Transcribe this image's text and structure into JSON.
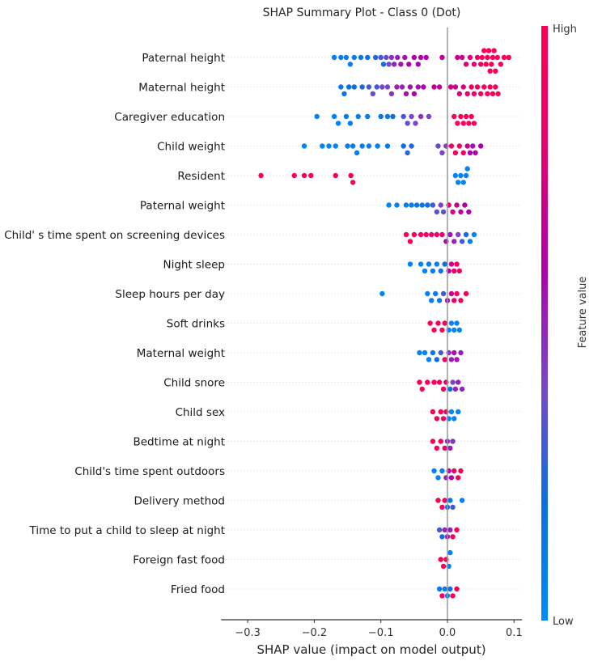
{
  "chart_data": {
    "type": "scatter",
    "subtype": "shap-beeswarm",
    "title": "SHAP Summary Plot - Class 0 (Dot)",
    "xlabel": "SHAP value (impact on model output)",
    "ylabel": "",
    "xlim": [
      -0.34,
      0.112
    ],
    "xticks": [
      -0.3,
      -0.2,
      -0.1,
      0.0,
      0.1
    ],
    "xtick_labels": [
      "−0.3",
      "−0.2",
      "−0.1",
      "0.0",
      "0.1"
    ],
    "grid": false,
    "colorbar": {
      "label": "Feature value",
      "high_label": "High",
      "low_label": "Low",
      "colors": [
        "#008bfb",
        "#0d6fe0",
        "#7a45c8",
        "#b000a8",
        "#e8006f",
        "#ff0052"
      ]
    },
    "features": [
      {
        "name": "Paternal height",
        "points": [
          [
            -0.17,
            0.1
          ],
          [
            -0.16,
            0.1
          ],
          [
            -0.152,
            0.1
          ],
          [
            -0.146,
            0.1
          ],
          [
            -0.14,
            0.1
          ],
          [
            -0.13,
            0.15
          ],
          [
            -0.12,
            0.2
          ],
          [
            -0.108,
            0.25
          ],
          [
            -0.1,
            0.3
          ],
          [
            -0.096,
            0.2
          ],
          [
            -0.092,
            0.35
          ],
          [
            -0.088,
            0.4
          ],
          [
            -0.084,
            0.45
          ],
          [
            -0.08,
            0.5
          ],
          [
            -0.075,
            0.5
          ],
          [
            -0.07,
            0.55
          ],
          [
            -0.064,
            0.55
          ],
          [
            -0.058,
            0.6
          ],
          [
            -0.05,
            0.6
          ],
          [
            -0.044,
            0.6
          ],
          [
            -0.04,
            0.6
          ],
          [
            -0.032,
            0.6
          ],
          [
            -0.008,
            0.65
          ],
          [
            0.015,
            0.7
          ],
          [
            0.022,
            0.7
          ],
          [
            0.028,
            0.75
          ],
          [
            0.034,
            0.75
          ],
          [
            0.04,
            0.8
          ],
          [
            0.045,
            0.85
          ],
          [
            0.05,
            0.9
          ],
          [
            0.052,
            0.9
          ],
          [
            0.055,
            0.95
          ],
          [
            0.058,
            0.95
          ],
          [
            0.06,
            0.95
          ],
          [
            0.062,
            0.95
          ],
          [
            0.064,
            0.9
          ],
          [
            0.066,
            0.95
          ],
          [
            0.068,
            0.95
          ],
          [
            0.07,
            0.9
          ],
          [
            0.072,
            0.95
          ],
          [
            0.075,
            0.95
          ],
          [
            0.08,
            0.95
          ],
          [
            0.085,
            0.95
          ],
          [
            0.092,
            0.95
          ]
        ]
      },
      {
        "name": "Maternal height",
        "points": [
          [
            -0.16,
            0.15
          ],
          [
            -0.155,
            0.15
          ],
          [
            -0.148,
            0.2
          ],
          [
            -0.14,
            0.2
          ],
          [
            -0.128,
            0.25
          ],
          [
            -0.118,
            0.3
          ],
          [
            -0.112,
            0.35
          ],
          [
            -0.106,
            0.3
          ],
          [
            -0.098,
            0.4
          ],
          [
            -0.09,
            0.4
          ],
          [
            -0.084,
            0.45
          ],
          [
            -0.076,
            0.5
          ],
          [
            -0.068,
            0.5
          ],
          [
            -0.062,
            0.55
          ],
          [
            -0.056,
            0.55
          ],
          [
            -0.05,
            0.6
          ],
          [
            -0.044,
            0.55
          ],
          [
            -0.036,
            0.6
          ],
          [
            -0.02,
            0.65
          ],
          [
            -0.012,
            0.65
          ],
          [
            0.005,
            0.7
          ],
          [
            0.012,
            0.7
          ],
          [
            0.018,
            0.75
          ],
          [
            0.024,
            0.75
          ],
          [
            0.03,
            0.8
          ],
          [
            0.036,
            0.85
          ],
          [
            0.04,
            0.85
          ],
          [
            0.045,
            0.9
          ],
          [
            0.05,
            0.9
          ],
          [
            0.055,
            0.9
          ],
          [
            0.06,
            0.95
          ],
          [
            0.064,
            0.95
          ],
          [
            0.068,
            0.95
          ],
          [
            0.072,
            0.95
          ],
          [
            0.076,
            0.95
          ]
        ]
      },
      {
        "name": "Caregiver education",
        "points": [
          [
            -0.196,
            0.05
          ],
          [
            -0.17,
            0.05
          ],
          [
            -0.164,
            0.05
          ],
          [
            -0.152,
            0.1
          ],
          [
            -0.146,
            0.1
          ],
          [
            -0.134,
            0.1
          ],
          [
            -0.12,
            0.1
          ],
          [
            -0.1,
            0.15
          ],
          [
            -0.09,
            0.15
          ],
          [
            -0.082,
            0.2
          ],
          [
            -0.066,
            0.3
          ],
          [
            -0.06,
            0.35
          ],
          [
            -0.054,
            0.4
          ],
          [
            -0.048,
            0.4
          ],
          [
            -0.04,
            0.45
          ],
          [
            -0.028,
            0.4
          ],
          [
            0.01,
            0.95
          ],
          [
            0.015,
            0.95
          ],
          [
            0.02,
            0.95
          ],
          [
            0.024,
            0.95
          ],
          [
            0.028,
            0.9
          ],
          [
            0.032,
            0.95
          ],
          [
            0.036,
            0.95
          ],
          [
            0.04,
            0.95
          ]
        ]
      },
      {
        "name": "Child weight",
        "points": [
          [
            -0.215,
            0.05
          ],
          [
            -0.188,
            0.05
          ],
          [
            -0.178,
            0.05
          ],
          [
            -0.168,
            0.05
          ],
          [
            -0.15,
            0.1
          ],
          [
            -0.142,
            0.1
          ],
          [
            -0.136,
            0.1
          ],
          [
            -0.128,
            0.1
          ],
          [
            -0.118,
            0.1
          ],
          [
            -0.105,
            0.1
          ],
          [
            -0.09,
            0.15
          ],
          [
            -0.066,
            0.2
          ],
          [
            -0.06,
            0.25
          ],
          [
            -0.054,
            0.25
          ],
          [
            -0.014,
            0.35
          ],
          [
            -0.008,
            0.4
          ],
          [
            -0.002,
            0.45
          ],
          [
            0.006,
            0.9
          ],
          [
            0.012,
            0.9
          ],
          [
            0.018,
            0.9
          ],
          [
            0.024,
            0.85
          ],
          [
            0.03,
            0.7
          ],
          [
            0.034,
            0.6
          ],
          [
            0.038,
            0.55
          ],
          [
            0.042,
            0.6
          ],
          [
            0.05,
            0.6
          ]
        ]
      },
      {
        "name": "Resident",
        "points": [
          [
            -0.28,
            0.95
          ],
          [
            -0.23,
            0.95
          ],
          [
            -0.215,
            0.95
          ],
          [
            -0.205,
            0.95
          ],
          [
            -0.168,
            0.95
          ],
          [
            -0.145,
            0.95
          ],
          [
            -0.142,
            0.95
          ],
          [
            0.012,
            0.05
          ],
          [
            0.016,
            0.05
          ],
          [
            0.02,
            0.05
          ],
          [
            0.024,
            0.05
          ],
          [
            0.028,
            0.05
          ],
          [
            0.03,
            0.05
          ]
        ]
      },
      {
        "name": "Paternal weight",
        "points": [
          [
            -0.088,
            0.05
          ],
          [
            -0.076,
            0.05
          ],
          [
            -0.062,
            0.1
          ],
          [
            -0.054,
            0.1
          ],
          [
            -0.046,
            0.15
          ],
          [
            -0.038,
            0.15
          ],
          [
            -0.03,
            0.2
          ],
          [
            -0.022,
            0.3
          ],
          [
            -0.016,
            0.35
          ],
          [
            -0.01,
            0.4
          ],
          [
            -0.006,
            0.35
          ],
          [
            0.002,
            0.8
          ],
          [
            0.008,
            0.75
          ],
          [
            0.014,
            0.7
          ],
          [
            0.02,
            0.65
          ],
          [
            0.026,
            0.6
          ],
          [
            0.032,
            0.6
          ]
        ]
      },
      {
        "name": "Child' s time spent on screening devices",
        "points": [
          [
            -0.062,
            0.95
          ],
          [
            -0.056,
            0.95
          ],
          [
            -0.05,
            0.95
          ],
          [
            -0.04,
            0.95
          ],
          [
            -0.032,
            0.9
          ],
          [
            -0.024,
            0.9
          ],
          [
            -0.016,
            0.85
          ],
          [
            -0.008,
            0.8
          ],
          [
            -0.002,
            0.6
          ],
          [
            0.004,
            0.55
          ],
          [
            0.01,
            0.5
          ],
          [
            0.016,
            0.4
          ],
          [
            0.022,
            0.3
          ],
          [
            0.028,
            0.2
          ],
          [
            0.034,
            0.1
          ],
          [
            0.04,
            0.05
          ]
        ]
      },
      {
        "name": "Night sleep",
        "points": [
          [
            -0.056,
            0.05
          ],
          [
            -0.04,
            0.05
          ],
          [
            -0.034,
            0.05
          ],
          [
            -0.028,
            0.1
          ],
          [
            -0.022,
            0.1
          ],
          [
            -0.016,
            0.1
          ],
          [
            -0.01,
            0.15
          ],
          [
            -0.004,
            0.2
          ],
          [
            0.002,
            0.6
          ],
          [
            0.006,
            0.7
          ],
          [
            0.01,
            0.8
          ],
          [
            0.014,
            0.9
          ],
          [
            0.018,
            0.9
          ]
        ]
      },
      {
        "name": "Sleep hours per day",
        "points": [
          [
            -0.098,
            0.05
          ],
          [
            -0.03,
            0.05
          ],
          [
            -0.024,
            0.1
          ],
          [
            -0.018,
            0.1
          ],
          [
            -0.012,
            0.15
          ],
          [
            -0.006,
            0.3
          ],
          [
            0.0,
            0.55
          ],
          [
            0.006,
            0.7
          ],
          [
            0.01,
            0.85
          ],
          [
            0.014,
            0.9
          ],
          [
            0.02,
            0.95
          ],
          [
            0.028,
            0.95
          ]
        ]
      },
      {
        "name": "Soft drinks",
        "points": [
          [
            -0.026,
            0.95
          ],
          [
            -0.02,
            0.95
          ],
          [
            -0.014,
            0.95
          ],
          [
            -0.008,
            0.95
          ],
          [
            -0.004,
            0.9
          ],
          [
            0.002,
            0.1
          ],
          [
            0.006,
            0.05
          ],
          [
            0.01,
            0.05
          ],
          [
            0.014,
            0.05
          ],
          [
            0.018,
            0.05
          ]
        ]
      },
      {
        "name": "Maternal weight",
        "points": [
          [
            -0.042,
            0.05
          ],
          [
            -0.034,
            0.05
          ],
          [
            -0.028,
            0.05
          ],
          [
            -0.022,
            0.15
          ],
          [
            -0.016,
            0.2
          ],
          [
            -0.01,
            0.3
          ],
          [
            -0.004,
            0.9
          ],
          [
            0.002,
            0.45
          ],
          [
            0.006,
            0.5
          ],
          [
            0.01,
            0.55
          ],
          [
            0.014,
            0.55
          ],
          [
            0.02,
            0.5
          ]
        ]
      },
      {
        "name": "Child snore",
        "points": [
          [
            -0.042,
            0.95
          ],
          [
            -0.038,
            0.95
          ],
          [
            -0.03,
            0.95
          ],
          [
            -0.02,
            0.95
          ],
          [
            -0.012,
            0.9
          ],
          [
            -0.006,
            0.9
          ],
          [
            -0.002,
            0.85
          ],
          [
            0.004,
            0.2
          ],
          [
            0.008,
            0.4
          ],
          [
            0.012,
            0.5
          ],
          [
            0.016,
            0.5
          ],
          [
            0.022,
            0.5
          ]
        ]
      },
      {
        "name": "Child sex",
        "points": [
          [
            -0.022,
            0.95
          ],
          [
            -0.016,
            0.95
          ],
          [
            -0.01,
            0.95
          ],
          [
            -0.006,
            0.95
          ],
          [
            -0.002,
            0.9
          ],
          [
            0.002,
            0.05
          ],
          [
            0.006,
            0.05
          ],
          [
            0.01,
            0.05
          ],
          [
            0.016,
            0.05
          ]
        ]
      },
      {
        "name": "Bedtime at night",
        "points": [
          [
            -0.022,
            0.95
          ],
          [
            -0.016,
            0.95
          ],
          [
            -0.01,
            0.9
          ],
          [
            -0.004,
            0.85
          ],
          [
            0.0,
            0.5
          ],
          [
            0.004,
            0.5
          ],
          [
            0.008,
            0.45
          ]
        ]
      },
      {
        "name": "Child's time spent outdoors",
        "points": [
          [
            -0.02,
            0.05
          ],
          [
            -0.014,
            0.05
          ],
          [
            -0.008,
            0.1
          ],
          [
            -0.002,
            0.5
          ],
          [
            0.002,
            0.55
          ],
          [
            0.006,
            0.6
          ],
          [
            0.01,
            0.9
          ],
          [
            0.016,
            0.95
          ],
          [
            0.02,
            0.95
          ]
        ]
      },
      {
        "name": "Delivery method",
        "points": [
          [
            -0.014,
            0.95
          ],
          [
            -0.008,
            0.95
          ],
          [
            -0.004,
            0.9
          ],
          [
            0.0,
            0.2
          ],
          [
            0.004,
            0.15
          ],
          [
            0.008,
            0.3
          ],
          [
            0.022,
            0.05
          ]
        ]
      },
      {
        "name": "Time to put a child to sleep at night",
        "points": [
          [
            -0.012,
            0.3
          ],
          [
            -0.008,
            0.2
          ],
          [
            -0.004,
            0.5
          ],
          [
            0.0,
            0.55
          ],
          [
            0.004,
            0.5
          ],
          [
            0.008,
            0.9
          ],
          [
            0.014,
            0.95
          ]
        ]
      },
      {
        "name": "Foreign fast food",
        "points": [
          [
            -0.01,
            0.95
          ],
          [
            -0.006,
            0.95
          ],
          [
            -0.002,
            0.95
          ],
          [
            0.002,
            0.05
          ],
          [
            0.004,
            0.05
          ]
        ]
      },
      {
        "name": "Fried food",
        "points": [
          [
            -0.012,
            0.1
          ],
          [
            -0.008,
            0.9
          ],
          [
            -0.004,
            0.1
          ],
          [
            0.0,
            0.1
          ],
          [
            0.004,
            0.2
          ],
          [
            0.008,
            0.95
          ],
          [
            0.014,
            0.95
          ]
        ]
      }
    ]
  }
}
